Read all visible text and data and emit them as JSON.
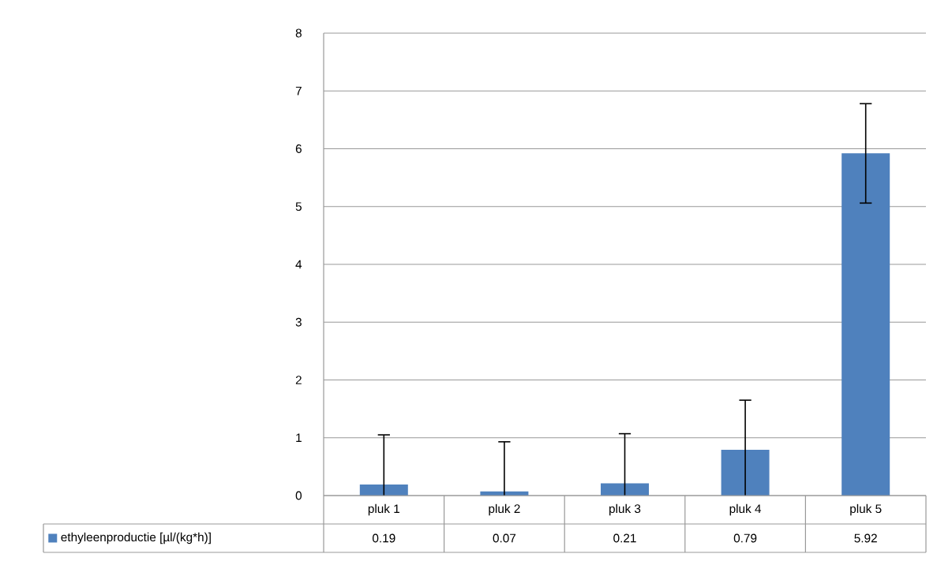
{
  "chart_data": {
    "type": "bar",
    "categories": [
      "pluk 1",
      "pluk 2",
      "pluk 3",
      "pluk 4",
      "pluk 5"
    ],
    "series": [
      {
        "name": "ethyleenproductie [µl/(kg*h)]",
        "color": "#4f81bd",
        "values": [
          0.19,
          0.07,
          0.21,
          0.79,
          5.92
        ],
        "errors": [
          [
            0,
            1.05
          ],
          [
            0,
            0.93
          ],
          [
            0,
            1.07
          ],
          [
            0,
            1.65
          ],
          [
            5.06,
            6.78
          ]
        ]
      }
    ],
    "ylim": [
      0,
      8
    ],
    "yticks": [
      0,
      1,
      2,
      3,
      4,
      5,
      6,
      7,
      8
    ],
    "grid": "y",
    "data_labels": true,
    "legend": "bottom"
  }
}
